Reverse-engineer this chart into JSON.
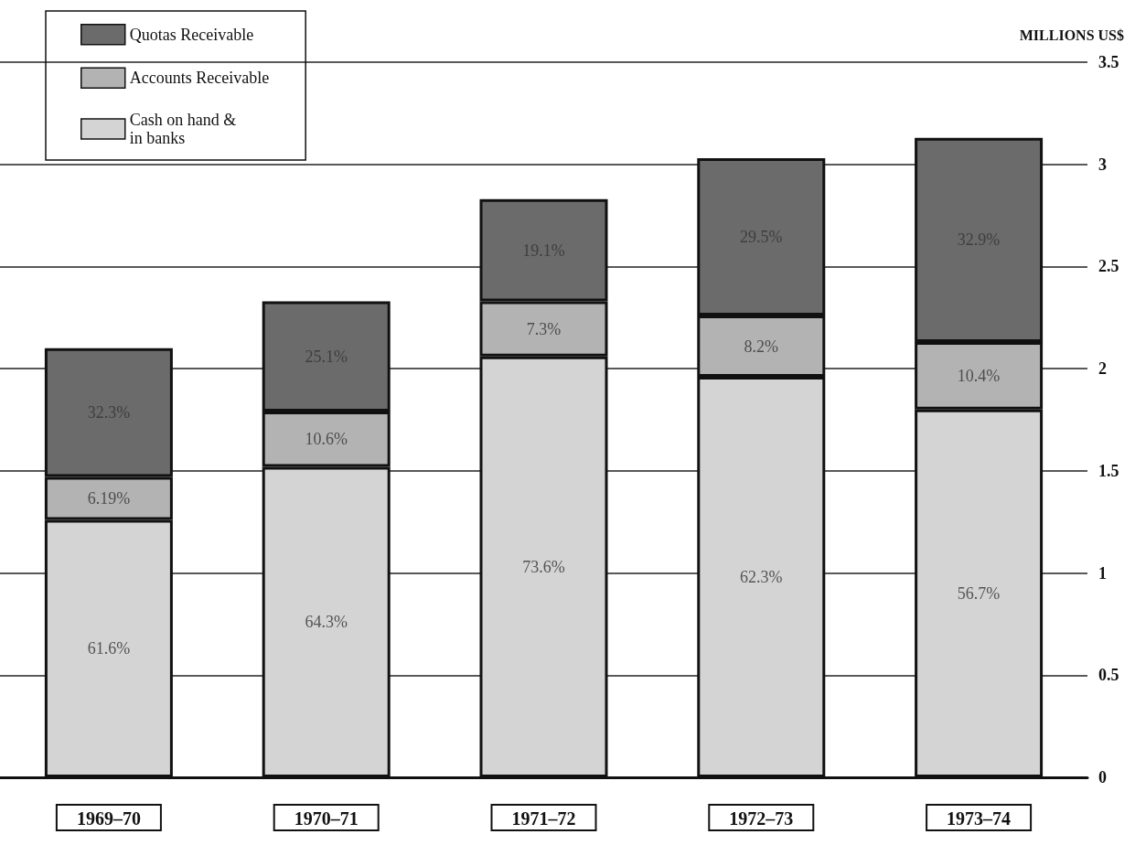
{
  "chart_data": {
    "type": "bar",
    "stacked": true,
    "ylabel": "MILLIONS US$",
    "categories": [
      "1969–70",
      "1970–71",
      "1971–72",
      "1972–73",
      "1973–74"
    ],
    "series": [
      {
        "name": "Cash on hand &\nin banks",
        "color": "#d4d4d4",
        "values": [
          1.26,
          1.52,
          2.06,
          1.96,
          1.8
        ]
      },
      {
        "name": "Accounts Receivable",
        "color": "#b3b3b3",
        "values": [
          0.21,
          0.27,
          0.27,
          0.3,
          0.33
        ]
      },
      {
        "name": "Quotas Receivable",
        "color": "#6b6b6b",
        "values": [
          0.63,
          0.54,
          0.5,
          0.77,
          1.0
        ]
      }
    ],
    "annotations": [
      "61.6%",
      "64.3%",
      "73.6%",
      "62.3%",
      "56.7%",
      "6.19%",
      "10.6%",
      "7.3%",
      "8.2%",
      "10.4%",
      "32.3%",
      "25.1%",
      "19.1%",
      "29.5%",
      "32.9%"
    ],
    "ylim": [
      0,
      3.5
    ],
    "yticks": [
      0,
      0.5,
      1,
      1.5,
      2,
      2.5,
      3,
      3.5
    ],
    "grid": "y",
    "legend": "top left"
  }
}
